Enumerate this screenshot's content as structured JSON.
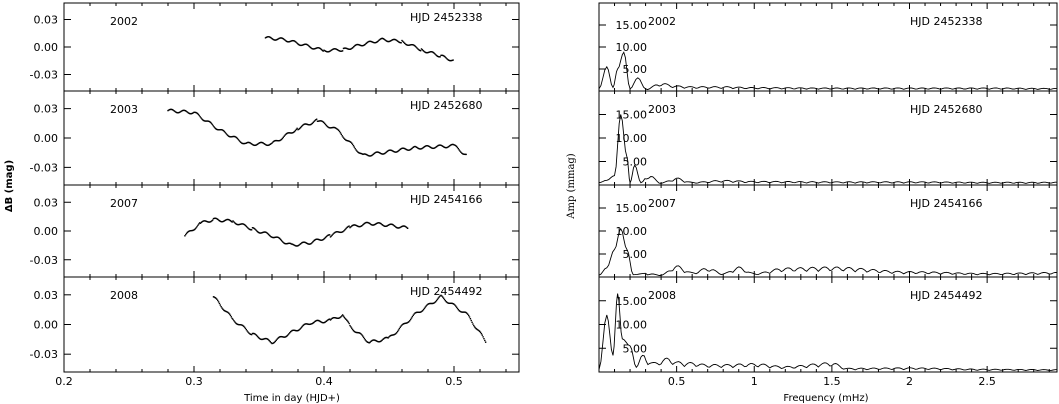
{
  "chart_data": [
    {
      "type": "scatter",
      "xlabel": "Time in day (HJD+)",
      "ylabel": "ΔB (mag)",
      "xlim": [
        0.2,
        0.55
      ],
      "ylim": [
        -0.048,
        0.048
      ],
      "xticks": [
        "0.2",
        "0.3",
        "0.4",
        "0.5"
      ],
      "yticks": [
        "0.03",
        "0.00",
        "-0.03"
      ],
      "panels": [
        {
          "year": "2002",
          "hjd": "HJD 2452338",
          "series": [
            {
              "x": [
                0.355,
                0.37,
                0.385,
                0.4,
                0.415,
                0.43,
                0.445,
                0.46,
                0.475,
                0.49,
                0.5
              ],
              "y": [
                0.01,
                0.008,
                0.002,
                -0.004,
                -0.003,
                0.003,
                0.008,
                0.006,
                -0.003,
                -0.01,
                -0.015
              ]
            }
          ]
        },
        {
          "year": "2003",
          "hjd": "HJD 2452680",
          "series": [
            {
              "x": [
                0.28,
                0.3,
                0.32,
                0.34,
                0.36,
                0.38,
                0.395,
                0.41,
                0.43,
                0.45,
                0.47,
                0.5,
                0.51
              ],
              "y": [
                0.028,
                0.026,
                0.008,
                -0.006,
                -0.006,
                0.01,
                0.018,
                0.008,
                -0.018,
                -0.014,
                -0.01,
                -0.008,
                -0.018
              ]
            }
          ]
        },
        {
          "year": "2007",
          "hjd": "HJD 2454166",
          "series": [
            {
              "x": [
                0.293,
                0.305,
                0.315,
                0.33,
                0.345,
                0.36,
                0.375,
                0.39,
                0.405,
                0.42,
                0.435,
                0.45,
                0.465
              ],
              "y": [
                -0.005,
                0.008,
                0.012,
                0.01,
                0.002,
                -0.005,
                -0.015,
                -0.012,
                -0.005,
                0.004,
                0.008,
                0.006,
                0.003
              ]
            }
          ]
        },
        {
          "year": "2008",
          "hjd": "HJD 2454492",
          "series": [
            {
              "x": [
                0.315,
                0.33,
                0.345,
                0.36,
                0.375,
                0.39,
                0.405,
                0.415,
                0.42,
                0.435,
                0.45,
                0.47,
                0.49,
                0.51,
                0.525
              ],
              "y": [
                0.028,
                0.005,
                -0.01,
                -0.018,
                -0.008,
                0.002,
                0.004,
                0.01,
                -0.002,
                -0.018,
                -0.014,
                0.01,
                0.028,
                0.01,
                -0.018
              ]
            }
          ]
        }
      ]
    },
    {
      "type": "line",
      "xlabel": "Frequency (mHz)",
      "ylabel": "Amp (mmag)",
      "xlim": [
        0.0,
        2.95
      ],
      "ylim": [
        0,
        20
      ],
      "xticks": [
        "0.5",
        "1",
        "1.5",
        "2",
        "2.5"
      ],
      "yticks": [
        "15.00",
        "10.00",
        "5.00"
      ],
      "panels": [
        {
          "year": "2002",
          "hjd": "HJD 2452338",
          "series": [
            {
              "x": [
                0.0,
                0.05,
                0.09,
                0.12,
                0.16,
                0.2,
                0.25,
                0.3,
                0.4,
                0.5,
                0.6,
                0.8,
                1.0,
                1.5,
                2.0,
                2.5,
                2.95
              ],
              "y": [
                0.5,
                5.5,
                0.8,
                5.0,
                8.8,
                0.5,
                3.0,
                0.5,
                1.8,
                1.2,
                1.0,
                1.0,
                0.8,
                0.7,
                0.7,
                0.7,
                0.6
              ]
            }
          ]
        },
        {
          "year": "2003",
          "hjd": "HJD 2452680",
          "series": [
            {
              "x": [
                0.0,
                0.05,
                0.1,
                0.14,
                0.18,
                0.2,
                0.23,
                0.27,
                0.32,
                0.4,
                0.5,
                0.6,
                0.8,
                1.0,
                1.5,
                2.0,
                2.5,
                2.95
              ],
              "y": [
                0.5,
                1.0,
                2.0,
                15.0,
                6.0,
                0.5,
                4.2,
                0.5,
                2.2,
                0.5,
                1.5,
                0.6,
                1.0,
                0.8,
                0.7,
                0.7,
                0.6,
                0.6
              ]
            }
          ]
        },
        {
          "year": "2007",
          "hjd": "HJD 2454166",
          "series": [
            {
              "x": [
                0.0,
                0.05,
                0.1,
                0.14,
                0.18,
                0.22,
                0.3,
                0.4,
                0.5,
                0.6,
                0.7,
                0.8,
                0.9,
                1.0,
                1.2,
                1.5,
                2.0,
                2.5,
                2.95
              ],
              "y": [
                0.4,
                2.0,
                6.0,
                10.5,
                6.0,
                0.5,
                0.8,
                0.5,
                2.5,
                1.0,
                2.0,
                0.8,
                2.2,
                0.8,
                2.0,
                2.2,
                1.2,
                0.8,
                1.0
              ]
            }
          ]
        },
        {
          "year": "2008",
          "hjd": "HJD 2454492",
          "series": [
            {
              "x": [
                0.0,
                0.05,
                0.09,
                0.12,
                0.15,
                0.2,
                0.24,
                0.28,
                0.35,
                0.45,
                0.5,
                0.6,
                0.7,
                0.8,
                1.0,
                1.2,
                1.5,
                1.6,
                2.0,
                2.5,
                2.95
              ],
              "y": [
                0.5,
                12.0,
                3.5,
                16.5,
                7.0,
                5.5,
                1.0,
                3.5,
                2.0,
                3.0,
                2.2,
                2.0,
                1.6,
                1.6,
                1.8,
                1.2,
                2.0,
                0.8,
                0.9,
                0.6,
                0.5
              ]
            }
          ]
        }
      ]
    }
  ]
}
